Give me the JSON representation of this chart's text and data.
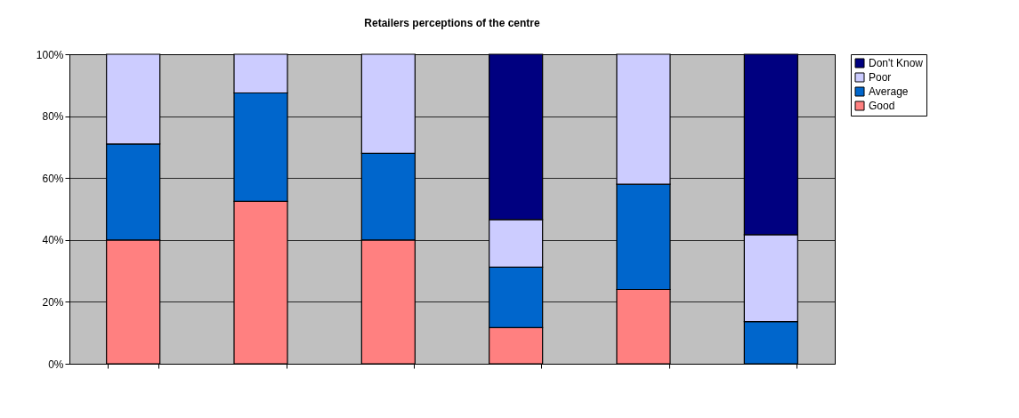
{
  "chart_data": {
    "type": "bar",
    "title": "Retailers perceptions of the centre",
    "stacked": true,
    "categories": [
      null,
      null,
      null,
      null,
      null,
      null
    ],
    "series": [
      {
        "name": "Good",
        "color": "#ff8080",
        "values": [
          40,
          52.5,
          40,
          11.7,
          24,
          null
        ]
      },
      {
        "name": "Average",
        "color": "#0066cc",
        "values": [
          31,
          35,
          28,
          19.5,
          34,
          13.6
        ]
      },
      {
        "name": "Poor",
        "color": "#ccccff",
        "values": [
          29,
          12.5,
          32,
          15.4,
          42,
          28.1
        ]
      },
      {
        "name": "Don't Know",
        "color": "#000080",
        "values": [
          null,
          null,
          null,
          53.4,
          null,
          58.3
        ]
      }
    ],
    "ylim": [
      0,
      100
    ],
    "yticks": [
      {
        "value": 0,
        "label": "0%"
      },
      {
        "value": 20,
        "label": "20%"
      },
      {
        "value": 40,
        "label": "40%"
      },
      {
        "value": 60,
        "label": "60%"
      },
      {
        "value": 80,
        "label": "80%"
      },
      {
        "value": 100,
        "label": "100%"
      }
    ],
    "grid": "y",
    "legend": "right",
    "tick_labels": "y"
  }
}
